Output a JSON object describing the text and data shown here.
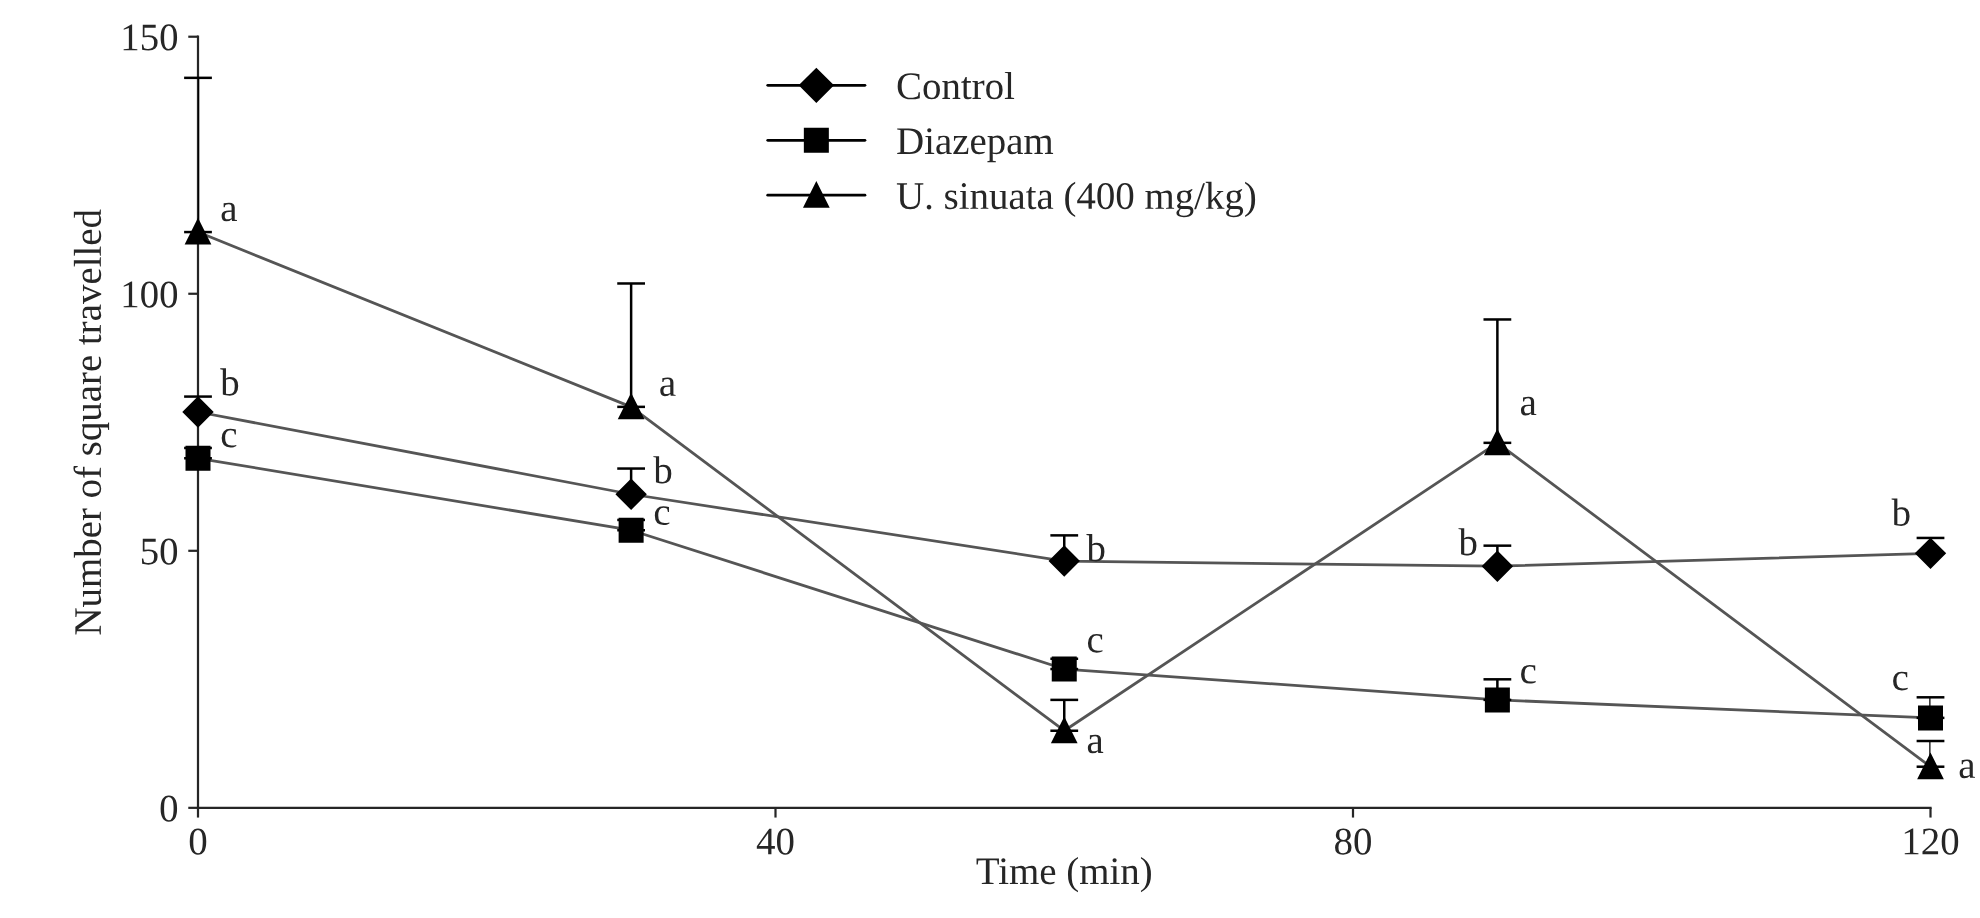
{
  "chart_data": {
    "type": "line",
    "xlabel": "Time (min)",
    "ylabel": "Number of square travelled",
    "xlim": [
      0,
      120
    ],
    "xticks": [
      0,
      40,
      80,
      120
    ],
    "ylim": [
      0,
      150
    ],
    "yticks": [
      0,
      50,
      100,
      150
    ],
    "grid": false,
    "legend": "top",
    "line_style": "solid",
    "series": [
      {
        "name": "Control",
        "color": "#000000",
        "marker": "diamond",
        "x": [
          0,
          30,
          60,
          90,
          120
        ],
        "values": [
          77,
          61,
          48,
          47,
          49.5
        ],
        "errors": [
          [
            77,
            80
          ],
          [
            61,
            66
          ],
          [
            48,
            53
          ],
          [
            47,
            51
          ],
          [
            49.5,
            52.5
          ]
        ]
      },
      {
        "name": "Diazepam",
        "color": "#000000",
        "marker": "square",
        "x": [
          0,
          30,
          60,
          90,
          120
        ],
        "values": [
          68,
          54,
          27,
          21,
          17.5
        ],
        "errors": [
          [
            68,
            70
          ],
          [
            54,
            56
          ],
          [
            27,
            29
          ],
          [
            21,
            25
          ],
          [
            17.5,
            21.5
          ]
        ]
      },
      {
        "name": "U. sinuata (400 mg/kg)",
        "color": "#000000",
        "marker": "triangle",
        "x": [
          0,
          30,
          60,
          90,
          120
        ],
        "values": [
          112,
          78,
          15,
          71,
          8
        ],
        "errors": [
          [
            112,
            142
          ],
          [
            78,
            102
          ],
          [
            15,
            21
          ],
          [
            71,
            95
          ],
          [
            8,
            13
          ]
        ]
      }
    ],
    "annotations": [
      {
        "text": "b",
        "x": 0,
        "y": 77
      },
      {
        "text": "b",
        "x": 30,
        "y": 61
      },
      {
        "text": "b",
        "x": 60,
        "y": 48
      },
      {
        "text": "b",
        "x": 90,
        "y": 47
      },
      {
        "text": "b",
        "x": 120,
        "y": 49.5
      },
      {
        "text": "c",
        "x": 0,
        "y": 68
      },
      {
        "text": "c",
        "x": 30,
        "y": 54
      },
      {
        "text": "c",
        "x": 60,
        "y": 27
      },
      {
        "text": "c",
        "x": 90,
        "y": 21
      },
      {
        "text": "c",
        "x": 120,
        "y": 17.5
      },
      {
        "text": "a",
        "x": 0,
        "y": 112
      },
      {
        "text": "a",
        "x": 30,
        "y": 78
      },
      {
        "text": "a",
        "x": 60,
        "y": 15
      },
      {
        "text": "a",
        "x": 90,
        "y": 71
      },
      {
        "text": "a",
        "x": 120,
        "y": 8
      }
    ]
  }
}
